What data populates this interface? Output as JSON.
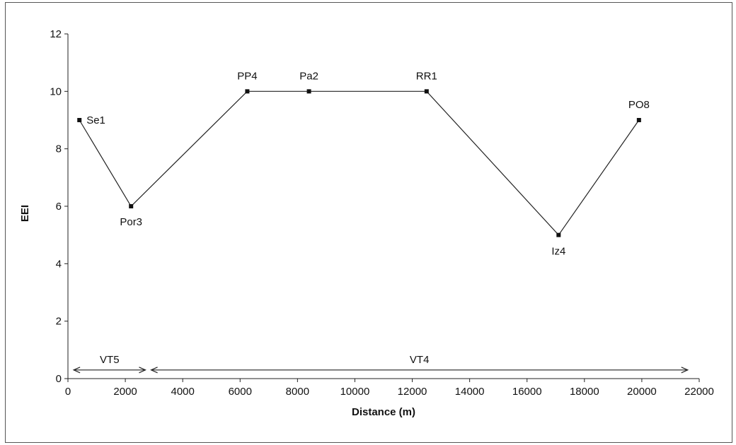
{
  "chart_data": {
    "type": "line",
    "title": "",
    "xlabel": "Distance (m)",
    "ylabel": "EEI",
    "xlim": [
      0,
      22000
    ],
    "ylim": [
      0,
      12
    ],
    "x_ticks": [
      0,
      2000,
      4000,
      6000,
      8000,
      10000,
      12000,
      14000,
      16000,
      18000,
      20000,
      22000
    ],
    "y_ticks": [
      0,
      2,
      4,
      6,
      8,
      10,
      12
    ],
    "grid": false,
    "legend": "none",
    "line_color": "#222222",
    "series": [
      {
        "points": [
          {
            "label": "Se1",
            "x": 400,
            "y": 9
          },
          {
            "label": "Por3",
            "x": 2200,
            "y": 6
          },
          {
            "label": "PP4",
            "x": 6250,
            "y": 10
          },
          {
            "label": "Pa2",
            "x": 8400,
            "y": 10
          },
          {
            "label": "RR1",
            "x": 12500,
            "y": 10
          },
          {
            "label": "Iz4",
            "x": 17100,
            "y": 5
          },
          {
            "label": "PO8",
            "x": 19900,
            "y": 9
          }
        ]
      }
    ],
    "ranges": [
      {
        "label": "VT5",
        "x_start": 200,
        "x_end": 2700,
        "y": 0.3
      },
      {
        "label": "VT4",
        "x_start": 2900,
        "x_end": 21600,
        "y": 0.3
      }
    ]
  }
}
